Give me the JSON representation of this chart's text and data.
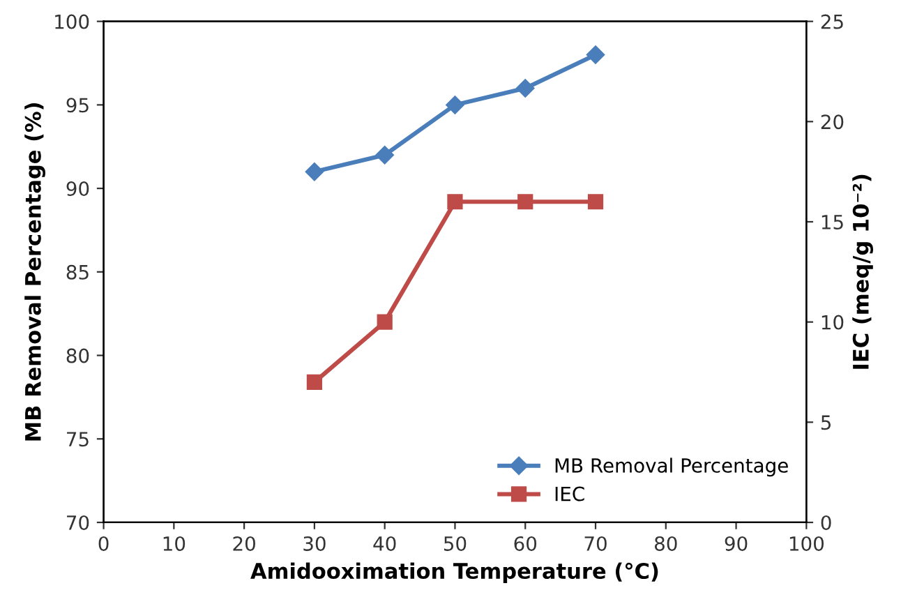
{
  "chart_data": {
    "type": "line",
    "xlabel": "Amidooximation Temperature (°C)",
    "ylabel": "MB Removal Percentage (%)",
    "y2label": "IEC (meq/g 10⁻²)",
    "x": [
      30,
      40,
      50,
      60,
      70
    ],
    "series": [
      {
        "name": "MB Removal Percentage",
        "color": "#4a7ebb",
        "marker": "diamond",
        "values": [
          91,
          92,
          95,
          96,
          98
        ]
      },
      {
        "name": "IEC",
        "color": "#be4b48",
        "marker": "square",
        "axis": "y2",
        "values": [
          7,
          10,
          16,
          16,
          16
        ]
      }
    ],
    "xlim": [
      0,
      100
    ],
    "xticks": [
      0,
      10,
      20,
      30,
      40,
      50,
      60,
      70,
      80,
      90,
      100
    ],
    "ylim": [
      70,
      100
    ],
    "yticks": [
      70,
      75,
      80,
      85,
      90,
      95,
      100
    ],
    "y2lim": [
      0,
      25
    ],
    "y2ticks": [
      0,
      5,
      10,
      15,
      20,
      25
    ],
    "grid": false,
    "legend": "bottom right",
    "line_style": "solid"
  }
}
